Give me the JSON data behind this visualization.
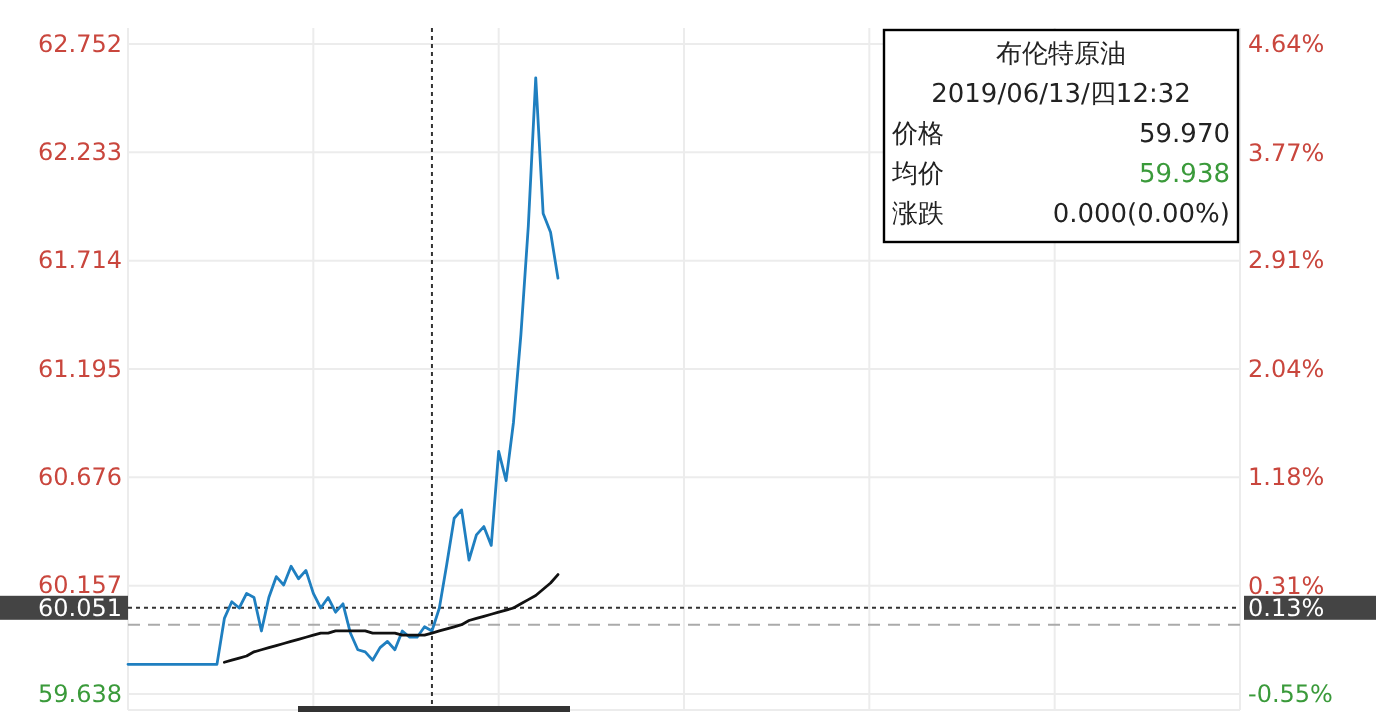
{
  "chart_data": {
    "type": "line",
    "categories": [
      null,
      null,
      null,
      null,
      null,
      null,
      null,
      null,
      null,
      null,
      null,
      null,
      null,
      null,
      null,
      null,
      null,
      null,
      null,
      null,
      null,
      null,
      null,
      null,
      null,
      null,
      null,
      null,
      null,
      null,
      null,
      null,
      null,
      null,
      null,
      null,
      null,
      null,
      null,
      null,
      null,
      null,
      null,
      null,
      null,
      null,
      null,
      null,
      null,
      null,
      null,
      null,
      null,
      null,
      null,
      null,
      null,
      null,
      null,
      null,
      null,
      null,
      null,
      null,
      null,
      null,
      null,
      null,
      null,
      null,
      null,
      null,
      null,
      null,
      null,
      null,
      null,
      null,
      null,
      null,
      null,
      null,
      null,
      null,
      null,
      null,
      null,
      null,
      null,
      null,
      null,
      null,
      null,
      null,
      null,
      null,
      null,
      null,
      null,
      null,
      null,
      null,
      null,
      null,
      null,
      null,
      null,
      null,
      null,
      null,
      null,
      null,
      null,
      null,
      null,
      null,
      null,
      null,
      null,
      null,
      null,
      null,
      null,
      null,
      null,
      null,
      null,
      null,
      null,
      null,
      null,
      null,
      null,
      null,
      null,
      null,
      null,
      null,
      null,
      null,
      null,
      null,
      null,
      null,
      null,
      null,
      null,
      null,
      null,
      null,
      null
    ],
    "ylim": [
      59.638,
      62.752
    ],
    "yticks": [
      59.638,
      60.157,
      60.676,
      61.195,
      61.714,
      62.233,
      62.752
    ],
    "y2lim": [
      -0.55,
      4.64
    ],
    "y2ticks": [
      {
        "value": -0.55,
        "label": "-0.55%"
      },
      {
        "value": 0.31,
        "label": "0.31%"
      },
      {
        "value": 1.18,
        "label": "1.18%"
      },
      {
        "value": 2.04,
        "label": "2.04%"
      },
      {
        "value": 2.91,
        "label": "2.91%"
      },
      {
        "value": 3.77,
        "label": "3.77%"
      },
      {
        "value": 4.64,
        "label": "4.64%"
      }
    ],
    "grid": true,
    "series": [
      {
        "color": "#1f7fc0",
        "values": [
          59.78,
          59.78,
          59.78,
          59.78,
          59.78,
          59.78,
          59.78,
          59.78,
          59.78,
          59.78,
          59.78,
          59.78,
          59.78,
          60.0,
          60.08,
          60.05,
          60.12,
          60.1,
          59.94,
          60.1,
          60.2,
          60.16,
          60.25,
          60.19,
          60.23,
          60.12,
          60.05,
          60.1,
          60.03,
          60.07,
          59.93,
          59.85,
          59.84,
          59.8,
          59.86,
          59.89,
          59.85,
          59.94,
          59.91,
          59.91,
          59.96,
          59.94,
          60.05,
          60.26,
          60.48,
          60.52,
          60.28,
          60.4,
          60.44,
          60.35,
          60.8,
          60.66,
          60.94,
          61.36,
          61.88,
          62.59,
          61.94,
          61.85,
          61.63,
          null,
          null,
          null,
          null,
          null,
          null,
          null,
          null,
          null,
          null,
          null,
          null,
          null,
          null,
          null,
          null,
          null,
          null,
          null,
          null,
          null,
          null,
          null,
          null,
          null,
          null,
          null,
          null,
          null,
          null,
          null,
          null,
          null,
          null,
          null,
          null,
          null,
          null,
          null,
          null,
          null,
          null,
          null,
          null,
          null,
          null,
          null,
          null,
          null,
          null,
          null,
          null,
          null,
          null,
          null,
          null,
          null,
          null,
          null,
          null,
          null,
          null,
          null,
          null,
          null,
          null,
          null,
          null,
          null,
          null,
          null,
          null,
          null,
          null,
          null,
          null,
          null,
          null,
          null,
          null,
          null,
          null,
          null,
          null,
          null,
          null,
          null,
          null,
          null,
          null,
          null,
          null
        ]
      },
      {
        "color": "#111111",
        "values": [
          null,
          null,
          null,
          null,
          null,
          null,
          null,
          null,
          null,
          null,
          null,
          null,
          null,
          59.79,
          59.8,
          59.81,
          59.82,
          59.84,
          59.85,
          59.86,
          59.87,
          59.88,
          59.89,
          59.9,
          59.91,
          59.92,
          59.93,
          59.93,
          59.94,
          59.94,
          59.94,
          59.94,
          59.94,
          59.93,
          59.93,
          59.93,
          59.93,
          59.92,
          59.92,
          59.92,
          59.92,
          59.93,
          59.94,
          59.95,
          59.96,
          59.97,
          59.99,
          60.0,
          60.01,
          60.02,
          60.03,
          60.04,
          60.05,
          60.07,
          60.09,
          60.11,
          60.14,
          60.17,
          60.21,
          null,
          null,
          null,
          null,
          null,
          null,
          null,
          null,
          null,
          null,
          null,
          null,
          null,
          null,
          null,
          null,
          null,
          null,
          null,
          null,
          null,
          null,
          null,
          null,
          null,
          null,
          null,
          null,
          null,
          null,
          null,
          null,
          null,
          null,
          null,
          null,
          null,
          null,
          null,
          null,
          null,
          null,
          null,
          null,
          null,
          null,
          null,
          null,
          null,
          null,
          null,
          null,
          null,
          null,
          null,
          null,
          null,
          null,
          null,
          null,
          null,
          null,
          null,
          null,
          null,
          null,
          null,
          null,
          null,
          null,
          null,
          null,
          null,
          null,
          null,
          null,
          null,
          null,
          null,
          null,
          null,
          null,
          null,
          null,
          null,
          null,
          null,
          null,
          null,
          null,
          null,
          null
        ]
      }
    ],
    "ref_lines": [
      {
        "axis": "y",
        "value": 60.051,
        "label": "60.051",
        "line_style": "dotted",
        "color": "#333333"
      },
      {
        "axis": "y",
        "value": 59.97,
        "line_style": "dashed",
        "color": "#aaaaaa"
      }
    ],
    "annotations": [
      "布伦特原油",
      "2019/06/13/四12:32",
      "价格",
      "59.970",
      "均价",
      "59.938",
      "涨跌",
      "0.000(0.00%)",
      "0.13%"
    ]
  }
}
